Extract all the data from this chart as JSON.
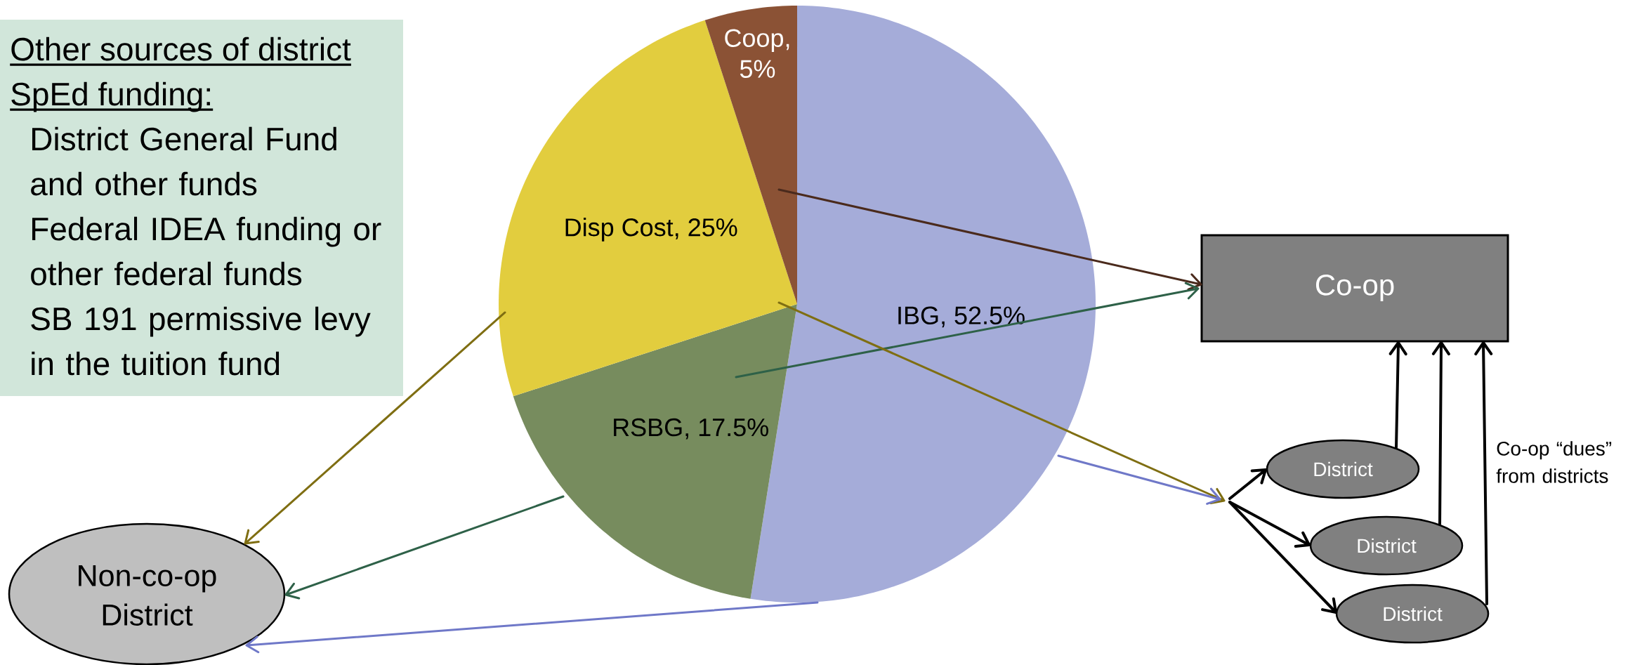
{
  "chart_data": {
    "type": "pie",
    "categories": [
      "IBG",
      "RSBG",
      "Disp Cost",
      "Coop"
    ],
    "values": [
      52.5,
      17.5,
      25,
      5
    ],
    "colors": [
      "#a5acd9",
      "#778c5e",
      "#e2cd3e",
      "#8b5235"
    ],
    "value_labels": [
      ", 52.5%",
      ", 17.5%",
      ", 25%",
      ", 5%"
    ],
    "annotations": [
      "Other sources of district SpEd funding:",
      "District General Fund and other funds",
      "Federal IDEA funding or other federal funds",
      "SB 191 permissive levy in the tuition fund",
      "Co-op",
      "District",
      "District",
      "District",
      "Co-op “dues” from districts",
      "Non-co-op District"
    ]
  }
}
